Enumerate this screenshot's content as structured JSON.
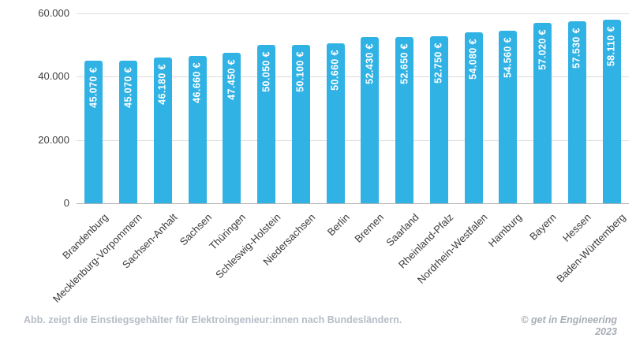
{
  "caption": "Abb. zeigt die Einstiegsgehälter für Elektroingenieur:innen nach Bundesländern.",
  "attribution": {
    "source": "© get in Engineering",
    "year": "2023"
  },
  "colors": {
    "bar": "#31B2E4",
    "grid": "#dcdcdc",
    "axis": "#b2b2b2",
    "tick_text": "#404040",
    "bar_label_text": "#ffffff",
    "caption_text": "#b6bdc7",
    "attribution_text": "#a6adb6"
  },
  "chart_data": {
    "type": "bar",
    "title": "",
    "xlabel": "",
    "ylabel": "",
    "ylim": [
      0,
      60000
    ],
    "grid": true,
    "legend": false,
    "categories": [
      "Brandenburg",
      "Mecklenburg-Vorpommern",
      "Sachsen-Anhalt",
      "Sachsen",
      "Thüringen",
      "Schleswig-Holstein",
      "Niedersachsen",
      "Berlin",
      "Bremen",
      "Saarland",
      "Rheinland-Pfalz",
      "Nordrhein-Westfalen",
      "Hamburg",
      "Bayern",
      "Hessen",
      "Baden-Württemberg"
    ],
    "values": [
      45070,
      45070,
      46180,
      46660,
      47450,
      50050,
      50100,
      50660,
      52430,
      52650,
      52750,
      54080,
      54560,
      57020,
      57530,
      58110
    ],
    "bar_labels": [
      "45.070 €",
      "45.070 €",
      "46.180 €",
      "46.660 €",
      "47.450 €",
      "50.050 €",
      "50.100 €",
      "50.660 €",
      "52.430 €",
      "52.650 €",
      "52.750 €",
      "54.080 €",
      "54.560 €",
      "57.020 €",
      "57.530 €",
      "58.110 €"
    ],
    "yticks": [
      {
        "value": 60000,
        "label": "60.000"
      },
      {
        "value": 40000,
        "label": "40.000"
      },
      {
        "value": 20000,
        "label": "20.000"
      },
      {
        "value": 0,
        "label": "0"
      }
    ]
  }
}
